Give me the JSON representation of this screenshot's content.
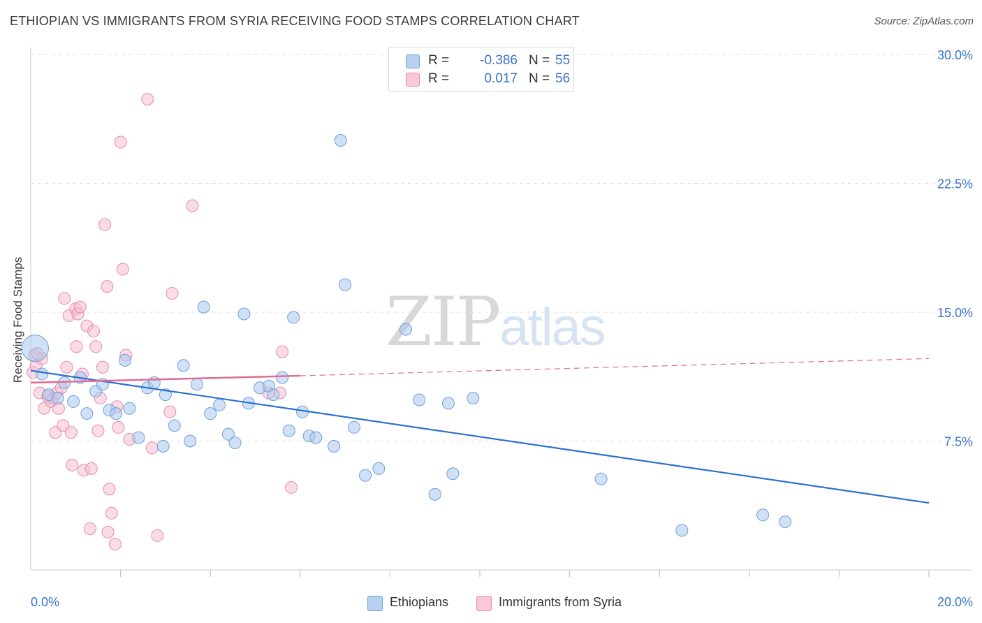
{
  "header": {
    "title": "ETHIOPIAN VS IMMIGRANTS FROM SYRIA RECEIVING FOOD STAMPS CORRELATION CHART",
    "source": "Source: ZipAtlas.com"
  },
  "watermark": {
    "zip": "ZIP",
    "atlas": "atlas"
  },
  "colors": {
    "blue_fill": "#a9c8ef",
    "blue_stroke": "#6f9fdc",
    "blue_line": "#2e6fd0",
    "pink_fill": "#f6bfd0",
    "pink_stroke": "#e98aaa",
    "pink_line": "#e06b95",
    "axis_text": "#3b74c9",
    "grid": "#dddddd"
  },
  "legend": {
    "rows": [
      {
        "r_label": "R =",
        "r_value": "-0.386",
        "n_label": "N =",
        "n_value": "55"
      },
      {
        "r_label": "R =",
        "r_value": "0.017",
        "n_label": "N =",
        "n_value": "56"
      }
    ]
  },
  "bottom_legend": [
    "Ethiopians",
    "Immigrants from Syria"
  ],
  "chart_data": {
    "type": "scatter",
    "title": "ETHIOPIAN VS IMMIGRANTS FROM SYRIA RECEIVING FOOD STAMPS CORRELATION CHART",
    "xlabel": "",
    "ylabel": "Receiving Food Stamps",
    "xlim": [
      0,
      20
    ],
    "ylim": [
      0,
      30
    ],
    "x_tick_labels": [
      "0.0%",
      "20.0%"
    ],
    "y_ticks": [
      7.5,
      15.0,
      22.5,
      30.0
    ],
    "y_tick_labels": [
      "7.5%",
      "15.0%",
      "22.5%",
      "30.0%"
    ],
    "series": [
      {
        "name": "Ethiopians",
        "r": -0.386,
        "n": 55,
        "trend": {
          "x": [
            0,
            20
          ],
          "y": [
            11.6,
            3.9
          ]
        },
        "points": [
          {
            "x": 0.1,
            "y": 12.9,
            "big": true
          },
          {
            "x": 0.25,
            "y": 11.4
          },
          {
            "x": 0.4,
            "y": 10.2
          },
          {
            "x": 0.6,
            "y": 10.0
          },
          {
            "x": 0.75,
            "y": 10.9
          },
          {
            "x": 0.95,
            "y": 9.8
          },
          {
            "x": 1.1,
            "y": 11.2
          },
          {
            "x": 1.25,
            "y": 9.1
          },
          {
            "x": 1.45,
            "y": 10.4
          },
          {
            "x": 1.6,
            "y": 10.8
          },
          {
            "x": 1.75,
            "y": 9.3
          },
          {
            "x": 1.9,
            "y": 9.1
          },
          {
            "x": 2.1,
            "y": 12.2
          },
          {
            "x": 2.2,
            "y": 9.4
          },
          {
            "x": 2.4,
            "y": 7.7
          },
          {
            "x": 2.6,
            "y": 10.6
          },
          {
            "x": 2.75,
            "y": 10.9
          },
          {
            "x": 2.95,
            "y": 7.2
          },
          {
            "x": 3.0,
            "y": 10.2
          },
          {
            "x": 3.2,
            "y": 8.4
          },
          {
            "x": 3.4,
            "y": 11.9
          },
          {
            "x": 3.55,
            "y": 7.5
          },
          {
            "x": 3.7,
            "y": 10.8
          },
          {
            "x": 3.85,
            "y": 15.3
          },
          {
            "x": 4.0,
            "y": 9.1
          },
          {
            "x": 4.2,
            "y": 9.6
          },
          {
            "x": 4.4,
            "y": 7.9
          },
          {
            "x": 4.55,
            "y": 7.4
          },
          {
            "x": 4.75,
            "y": 14.9
          },
          {
            "x": 4.85,
            "y": 9.7
          },
          {
            "x": 5.1,
            "y": 10.6
          },
          {
            "x": 5.3,
            "y": 10.7
          },
          {
            "x": 5.4,
            "y": 10.2
          },
          {
            "x": 5.6,
            "y": 11.2
          },
          {
            "x": 5.75,
            "y": 8.1
          },
          {
            "x": 5.85,
            "y": 14.7
          },
          {
            "x": 6.05,
            "y": 9.2
          },
          {
            "x": 6.2,
            "y": 7.8
          },
          {
            "x": 6.35,
            "y": 7.7
          },
          {
            "x": 6.75,
            "y": 7.2
          },
          {
            "x": 6.9,
            "y": 25.0
          },
          {
            "x": 7.0,
            "y": 16.6
          },
          {
            "x": 7.2,
            "y": 8.3
          },
          {
            "x": 7.45,
            "y": 5.5
          },
          {
            "x": 7.75,
            "y": 5.9
          },
          {
            "x": 8.35,
            "y": 14.0
          },
          {
            "x": 8.65,
            "y": 9.9
          },
          {
            "x": 9.0,
            "y": 4.4
          },
          {
            "x": 9.3,
            "y": 9.7
          },
          {
            "x": 9.4,
            "y": 5.6
          },
          {
            "x": 9.85,
            "y": 10.0
          },
          {
            "x": 12.7,
            "y": 5.3
          },
          {
            "x": 14.5,
            "y": 2.3
          },
          {
            "x": 16.3,
            "y": 3.2
          },
          {
            "x": 16.8,
            "y": 2.8
          }
        ]
      },
      {
        "name": "Immigrants from Syria",
        "r": 0.017,
        "n": 56,
        "trend": {
          "x": [
            0,
            6.0
          ],
          "y": [
            10.9,
            11.3
          ]
        },
        "trend_dashed": {
          "x": [
            6.0,
            20
          ],
          "y": [
            11.3,
            12.3
          ]
        },
        "points": [
          {
            "x": 0.05,
            "y": 11.5
          },
          {
            "x": 0.08,
            "y": 12.5
          },
          {
            "x": 0.12,
            "y": 11.9
          },
          {
            "x": 0.2,
            "y": 10.3
          },
          {
            "x": 0.25,
            "y": 12.3
          },
          {
            "x": 0.3,
            "y": 9.4
          },
          {
            "x": 0.38,
            "y": 10.1
          },
          {
            "x": 0.45,
            "y": 9.8
          },
          {
            "x": 0.5,
            "y": 10.0
          },
          {
            "x": 0.55,
            "y": 8.0
          },
          {
            "x": 0.58,
            "y": 10.3
          },
          {
            "x": 0.62,
            "y": 9.4
          },
          {
            "x": 0.68,
            "y": 10.6
          },
          {
            "x": 0.72,
            "y": 8.4
          },
          {
            "x": 0.75,
            "y": 15.8
          },
          {
            "x": 0.8,
            "y": 11.8
          },
          {
            "x": 0.85,
            "y": 14.8
          },
          {
            "x": 0.9,
            "y": 8.0
          },
          {
            "x": 0.92,
            "y": 6.1
          },
          {
            "x": 1.0,
            "y": 15.2
          },
          {
            "x": 1.02,
            "y": 13.0
          },
          {
            "x": 1.05,
            "y": 14.9
          },
          {
            "x": 1.1,
            "y": 15.3
          },
          {
            "x": 1.15,
            "y": 11.4
          },
          {
            "x": 1.18,
            "y": 5.8
          },
          {
            "x": 1.25,
            "y": 14.2
          },
          {
            "x": 1.32,
            "y": 2.4
          },
          {
            "x": 1.35,
            "y": 5.9
          },
          {
            "x": 1.4,
            "y": 13.9
          },
          {
            "x": 1.45,
            "y": 13.0
          },
          {
            "x": 1.5,
            "y": 8.1
          },
          {
            "x": 1.55,
            "y": 10.0
          },
          {
            "x": 1.6,
            "y": 11.8
          },
          {
            "x": 1.65,
            "y": 20.1
          },
          {
            "x": 1.7,
            "y": 16.5
          },
          {
            "x": 1.72,
            "y": 2.2
          },
          {
            "x": 1.75,
            "y": 4.7
          },
          {
            "x": 1.8,
            "y": 3.3
          },
          {
            "x": 1.88,
            "y": 1.5
          },
          {
            "x": 1.92,
            "y": 9.5
          },
          {
            "x": 1.95,
            "y": 8.3
          },
          {
            "x": 2.0,
            "y": 24.9
          },
          {
            "x": 2.05,
            "y": 17.5
          },
          {
            "x": 2.12,
            "y": 12.5
          },
          {
            "x": 2.2,
            "y": 7.6
          },
          {
            "x": 2.6,
            "y": 27.4
          },
          {
            "x": 2.7,
            "y": 7.1
          },
          {
            "x": 2.82,
            "y": 2.0
          },
          {
            "x": 3.1,
            "y": 9.2
          },
          {
            "x": 3.15,
            "y": 16.1
          },
          {
            "x": 3.6,
            "y": 21.2
          },
          {
            "x": 5.3,
            "y": 10.3
          },
          {
            "x": 5.55,
            "y": 10.3
          },
          {
            "x": 5.6,
            "y": 12.7
          },
          {
            "x": 5.8,
            "y": 4.8
          },
          {
            "x": 0.15,
            "y": 12.6
          }
        ]
      }
    ]
  }
}
